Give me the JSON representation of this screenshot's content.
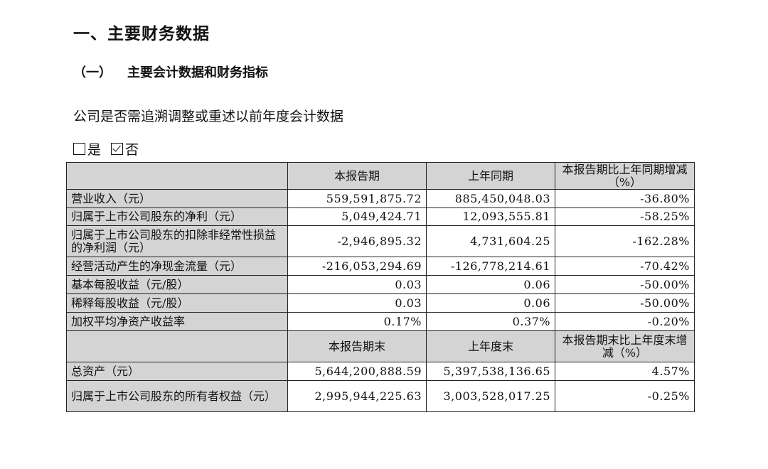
{
  "heading1": "一、主要财务数据",
  "heading2": {
    "number": "（一）",
    "title": "主要会计数据和财务指标"
  },
  "paragraph": "公司是否需追溯调整或重述以前年度会计数据",
  "choices": [
    {
      "label": "是",
      "checked": false
    },
    {
      "label": "否",
      "checked": true
    }
  ],
  "table": {
    "header1": [
      "本报告期",
      "上年同期",
      "本报告期比上年同期增减（%）"
    ],
    "rows1": [
      {
        "label": "营业收入（元）",
        "v1": "559,591,875.72",
        "v2": "885,450,048.03",
        "v3": "-36.80%"
      },
      {
        "label": "归属于上市公司股东的净利（元）",
        "v1": "5,049,424.71",
        "v2": "12,093,555.81",
        "v3": "-58.25%"
      },
      {
        "label": "归属于上市公司股东的扣除非经常性损益的净利润（元）",
        "v1": "-2,946,895.32",
        "v2": "4,731,604.25",
        "v3": "-162.28%"
      },
      {
        "label": "经营活动产生的净现金流量（元）",
        "v1": "-216,053,294.69",
        "v2": "-126,778,214.61",
        "v3": "-70.42%"
      },
      {
        "label": "基本每股收益（元/股）",
        "v1": "0.03",
        "v2": "0.06",
        "v3": "-50.00%"
      },
      {
        "label": "稀释每股收益（元/股）",
        "v1": "0.03",
        "v2": "0.06",
        "v3": "-50.00%"
      },
      {
        "label": "加权平均净资产收益率",
        "v1": "0.17%",
        "v2": "0.37%",
        "v3": "-0.20%"
      }
    ],
    "header2": [
      "本报告期末",
      "上年度末",
      "本报告期末比上年度末增减（%）"
    ],
    "rows2": [
      {
        "label": "总资产（元）",
        "v1": "5,644,200,888.59",
        "v2": "5,397,538,136.65",
        "v3": "4.57%"
      },
      {
        "label": "归属于上市公司股东的所有者权益（元）",
        "v1": "2,995,944,225.63",
        "v2": "3,003,528,017.25",
        "v3": "-0.25%"
      }
    ]
  }
}
